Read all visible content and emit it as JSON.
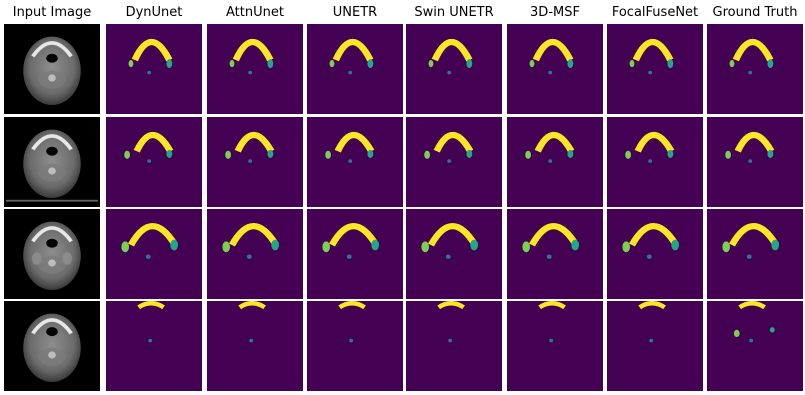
{
  "columns": [
    {
      "key": "input",
      "title": "Input Image"
    },
    {
      "key": "dynunet",
      "title": "DynUnet"
    },
    {
      "key": "attnunet",
      "title": "AttnUnet"
    },
    {
      "key": "unetr",
      "title": "UNETR"
    },
    {
      "key": "swin",
      "title": "Swin UNETR"
    },
    {
      "key": "msf",
      "title": "3D-MSF"
    },
    {
      "key": "focalfuse",
      "title": "FocalFuseNet"
    },
    {
      "key": "gt",
      "title": "Ground Truth"
    }
  ],
  "row_count": 4,
  "colors": {
    "background_mask": "#440154",
    "mandible": "#fde725",
    "left_structure": "#7ad151",
    "right_structure": "#22a884",
    "center_structure": "#2a788e",
    "ct_background": "#000000"
  }
}
